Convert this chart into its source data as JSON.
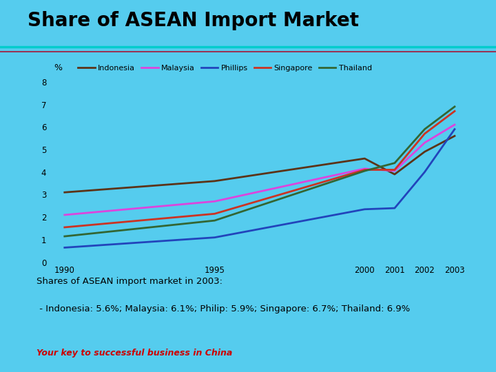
{
  "title": "Share of ASEAN Import Market",
  "background_color": "#55CCEE",
  "plot_bg_color": "#55CCEE",
  "ylabel": "%",
  "ylim": [
    0,
    8
  ],
  "yticks": [
    0,
    1,
    2,
    3,
    4,
    5,
    6,
    7,
    8
  ],
  "xlim": [
    1989.5,
    2003.8
  ],
  "xticks": [
    1990,
    1995,
    2000,
    2001,
    2002,
    2003
  ],
  "years": [
    1990,
    1995,
    2000,
    2001,
    2002,
    2003
  ],
  "series": {
    "Indonesia": {
      "values": [
        3.1,
        3.6,
        4.6,
        3.9,
        4.9,
        5.6
      ],
      "color": "#5C3317",
      "linewidth": 2.0
    },
    "Malaysia": {
      "values": [
        2.1,
        2.7,
        4.15,
        4.05,
        5.3,
        6.1
      ],
      "color": "#DD44DD",
      "linewidth": 2.0
    },
    "Phillips": {
      "values": [
        0.65,
        1.1,
        2.35,
        2.4,
        4.0,
        5.9
      ],
      "color": "#2244BB",
      "linewidth": 2.0
    },
    "Singapore": {
      "values": [
        1.55,
        2.15,
        4.1,
        4.1,
        5.7,
        6.7
      ],
      "color": "#CC3322",
      "linewidth": 2.0
    },
    "Thailand": {
      "values": [
        1.15,
        1.85,
        4.05,
        4.4,
        5.9,
        6.9
      ],
      "color": "#336633",
      "linewidth": 2.0
    }
  },
  "legend_order": [
    "Indonesia",
    "Malaysia",
    "Phillips",
    "Singapore",
    "Thailand"
  ],
  "annotation_line1": "Shares of ASEAN import market in 2003:",
  "annotation_line2": " - Indonesia: 5.6%; Malaysia: 6.1%; Philip: 5.9%; Singapore: 6.7%; Thailand: 6.9%",
  "footer_text": "Your key to successful business in China",
  "footer_color": "#CC0000",
  "title_color": "#000000",
  "title_fontsize": 20,
  "header_line_color1": "#00CCCC",
  "header_line_color2": "#993355"
}
